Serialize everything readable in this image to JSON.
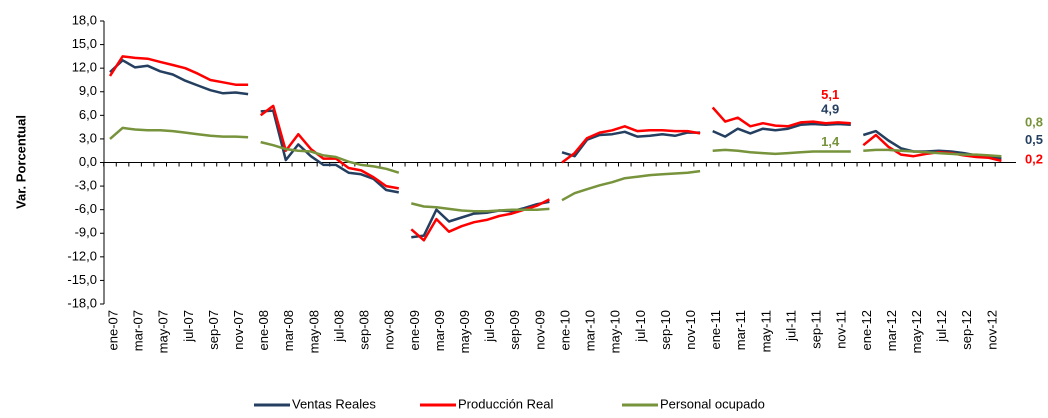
{
  "chart_data": {
    "type": "line",
    "y_label": "Var. Porcentual",
    "categories": [
      "ene-07",
      null,
      "mar-07",
      null,
      "may-07",
      null,
      "jul-07",
      null,
      "sep-07",
      null,
      "nov-07",
      null,
      "ene-08",
      null,
      "mar-08",
      null,
      "may-08",
      null,
      "jul-08",
      null,
      "sep-08",
      null,
      "nov-08",
      null,
      "ene-09",
      null,
      "mar-09",
      null,
      "may-09",
      null,
      "jul-09",
      null,
      "sep-09",
      null,
      "nov-09",
      null,
      "ene-10",
      null,
      "mar-10",
      null,
      "may-10",
      null,
      "jul-10",
      null,
      "sep-10",
      null,
      "nov-10",
      null,
      "ene-11",
      null,
      "mar-11",
      null,
      "may-11",
      null,
      "jul-11",
      null,
      "sep-11",
      null,
      "nov-11",
      null,
      "ene-12",
      null,
      "mar-12",
      null,
      "may-12",
      null,
      "jul-12",
      null,
      "sep-12",
      null,
      "nov-12",
      null
    ],
    "break_every": 12,
    "ylim": [
      -18,
      18
    ],
    "yticks": [
      {
        "value": -18,
        "label": "-18,0"
      },
      {
        "value": -15,
        "label": "-15,0"
      },
      {
        "value": -12,
        "label": "-12,0"
      },
      {
        "value": -9,
        "label": "-9,0"
      },
      {
        "value": -6,
        "label": "-6,0"
      },
      {
        "value": -3,
        "label": "-3,0"
      },
      {
        "value": 0,
        "label": "0,0"
      },
      {
        "value": 3,
        "label": "3,0"
      },
      {
        "value": 6,
        "label": "6,0"
      },
      {
        "value": 9,
        "label": "9,0"
      },
      {
        "value": 12,
        "label": "12,0"
      },
      {
        "value": 15,
        "label": "15,0"
      },
      {
        "value": 18,
        "label": "18,0"
      }
    ],
    "legend": "bottom",
    "series": [
      {
        "name": "Ventas Reales",
        "color": "#243f60",
        "values": [
          11.5,
          13.0,
          12.1,
          12.3,
          11.6,
          11.2,
          10.4,
          9.8,
          9.2,
          8.8,
          8.9,
          8.7,
          6.5,
          6.6,
          0.3,
          2.3,
          0.8,
          -0.3,
          -0.3,
          -1.3,
          -1.5,
          -2.1,
          -3.5,
          -3.8,
          -9.5,
          -9.3,
          -6.0,
          -7.5,
          -7.0,
          -6.5,
          -6.4,
          -6.1,
          -6.2,
          -5.8,
          -5.3,
          -5.0,
          1.3,
          0.8,
          2.9,
          3.5,
          3.6,
          3.9,
          3.3,
          3.4,
          3.6,
          3.4,
          3.8,
          3.8,
          4.0,
          3.3,
          4.3,
          3.7,
          4.3,
          4.1,
          4.3,
          4.8,
          4.9,
          4.8,
          4.9,
          4.8,
          3.5,
          4.0,
          2.8,
          1.8,
          1.4,
          1.4,
          1.5,
          1.4,
          1.2,
          0.9,
          0.8,
          0.5
        ],
        "value_labels": [
          null,
          null,
          null,
          null,
          null,
          null,
          null,
          null,
          null,
          null,
          null,
          null,
          null,
          null,
          null,
          null,
          null,
          null,
          null,
          null,
          null,
          null,
          null,
          null,
          null,
          null,
          null,
          null,
          null,
          null,
          null,
          null,
          null,
          null,
          null,
          null,
          null,
          null,
          null,
          null,
          null,
          null,
          null,
          null,
          null,
          null,
          null,
          null,
          null,
          null,
          null,
          null,
          null,
          null,
          null,
          null,
          null,
          null,
          "4,9",
          null,
          null,
          null,
          null,
          null,
          null,
          null,
          null,
          null,
          null,
          null,
          null,
          "0,5"
        ]
      },
      {
        "name": "Producción Real",
        "color": "#ff0000",
        "values": [
          11.0,
          13.5,
          13.3,
          13.2,
          12.8,
          12.4,
          12.0,
          11.3,
          10.5,
          10.2,
          9.9,
          9.9,
          6.0,
          7.2,
          1.5,
          3.6,
          1.7,
          0.5,
          0.5,
          -0.7,
          -1.0,
          -1.9,
          -3.0,
          -3.3,
          -8.5,
          -9.9,
          -7.2,
          -8.8,
          -8.1,
          -7.6,
          -7.3,
          -6.8,
          -6.5,
          -6.0,
          -5.5,
          -4.7,
          0.0,
          1.2,
          3.1,
          3.8,
          4.1,
          4.6,
          4.0,
          4.1,
          4.1,
          4.0,
          4.0,
          3.7,
          7.0,
          5.2,
          5.7,
          4.6,
          5.0,
          4.7,
          4.6,
          5.1,
          5.2,
          5.0,
          5.1,
          5.0,
          2.2,
          3.5,
          2.0,
          1.0,
          0.8,
          1.1,
          1.3,
          1.2,
          0.9,
          0.7,
          0.6,
          0.2
        ],
        "value_labels": [
          null,
          null,
          null,
          null,
          null,
          null,
          null,
          null,
          null,
          null,
          null,
          null,
          null,
          null,
          null,
          null,
          null,
          null,
          null,
          null,
          null,
          null,
          null,
          null,
          null,
          null,
          null,
          null,
          null,
          null,
          null,
          null,
          null,
          null,
          null,
          null,
          null,
          null,
          null,
          null,
          null,
          null,
          null,
          null,
          null,
          null,
          null,
          null,
          null,
          null,
          null,
          null,
          null,
          null,
          null,
          null,
          null,
          null,
          "5,1",
          null,
          null,
          null,
          null,
          null,
          null,
          null,
          null,
          null,
          null,
          null,
          null,
          "0,2"
        ]
      },
      {
        "name": "Personal ocupado",
        "color": "#77933c",
        "values": [
          3.0,
          4.4,
          4.2,
          4.1,
          4.1,
          4.0,
          3.8,
          3.6,
          3.4,
          3.3,
          3.3,
          3.2,
          2.6,
          2.2,
          1.7,
          1.5,
          1.4,
          0.9,
          0.7,
          0.1,
          -0.3,
          -0.5,
          -0.8,
          -1.3,
          -5.2,
          -5.6,
          -5.7,
          -5.9,
          -6.1,
          -6.2,
          -6.2,
          -6.1,
          -6.0,
          -6.0,
          -6.0,
          -5.9,
          -4.8,
          -3.9,
          -3.4,
          -2.9,
          -2.5,
          -2.0,
          -1.8,
          -1.6,
          -1.5,
          -1.4,
          -1.3,
          -1.1,
          1.5,
          1.6,
          1.5,
          1.3,
          1.2,
          1.1,
          1.2,
          1.3,
          1.4,
          1.4,
          1.4,
          1.4,
          1.5,
          1.6,
          1.6,
          1.5,
          1.4,
          1.3,
          1.2,
          1.1,
          1.0,
          1.0,
          0.9,
          0.8
        ],
        "value_labels": [
          null,
          null,
          null,
          null,
          null,
          null,
          null,
          null,
          null,
          null,
          null,
          null,
          null,
          null,
          null,
          null,
          null,
          null,
          null,
          null,
          null,
          null,
          null,
          null,
          null,
          null,
          null,
          null,
          null,
          null,
          null,
          null,
          null,
          null,
          null,
          null,
          null,
          null,
          null,
          null,
          null,
          null,
          null,
          null,
          null,
          null,
          null,
          null,
          null,
          null,
          null,
          null,
          null,
          null,
          null,
          null,
          null,
          null,
          "1,4",
          null,
          null,
          null,
          null,
          null,
          null,
          null,
          null,
          null,
          null,
          null,
          null,
          "0,8"
        ]
      }
    ]
  }
}
